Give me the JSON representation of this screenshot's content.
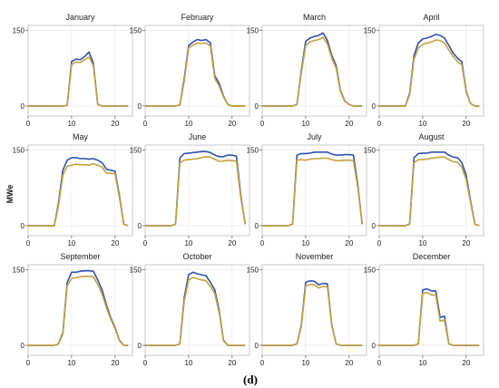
{
  "figure": {
    "ylabel": "MWe",
    "caption": "(d)",
    "colors": {
      "series_a": "#2e50b0",
      "series_b": "#c4a23e",
      "frame": "#bdbdbd",
      "grid": "#e6e6e6"
    }
  },
  "chart_data": [
    {
      "type": "line",
      "title": "January",
      "x": [
        0,
        1,
        2,
        3,
        4,
        5,
        6,
        7,
        8,
        9,
        10,
        11,
        12,
        13,
        14,
        15,
        16,
        17,
        18,
        19,
        20,
        21,
        22,
        23
      ],
      "xticks": [
        0,
        10,
        20
      ],
      "yticks": [
        0,
        150
      ],
      "xlim": [
        0,
        24
      ],
      "ylim": [
        -20,
        160
      ],
      "grid": true,
      "series": [
        {
          "values": [
            0,
            0,
            0,
            0,
            0,
            0,
            0,
            0,
            0,
            1,
            88,
            93,
            92,
            98,
            107,
            85,
            3,
            0,
            0,
            0,
            0,
            0,
            0,
            0
          ]
        },
        {
          "values": [
            0,
            0,
            0,
            0,
            0,
            0,
            0,
            0,
            0,
            1,
            82,
            87,
            86,
            92,
            97,
            80,
            3,
            0,
            0,
            0,
            0,
            0,
            0,
            0
          ]
        }
      ]
    },
    {
      "type": "line",
      "title": "February",
      "x": [
        0,
        1,
        2,
        3,
        4,
        5,
        6,
        7,
        8,
        9,
        10,
        11,
        12,
        13,
        14,
        15,
        16,
        17,
        18,
        19,
        20,
        21,
        22,
        23
      ],
      "xticks": [
        0,
        10,
        20
      ],
      "yticks": [
        0,
        150
      ],
      "xlim": [
        0,
        24
      ],
      "ylim": [
        -20,
        160
      ],
      "grid": true,
      "series": [
        {
          "values": [
            0,
            0,
            0,
            0,
            0,
            0,
            0,
            0,
            2,
            55,
            120,
            127,
            132,
            130,
            132,
            125,
            60,
            45,
            20,
            3,
            0,
            0,
            0,
            0
          ]
        },
        {
          "values": [
            0,
            0,
            0,
            0,
            0,
            0,
            0,
            0,
            2,
            50,
            115,
            121,
            125,
            124,
            125,
            119,
            55,
            40,
            18,
            3,
            0,
            0,
            0,
            0
          ]
        }
      ]
    },
    {
      "type": "line",
      "title": "March",
      "x": [
        0,
        1,
        2,
        3,
        4,
        5,
        6,
        7,
        8,
        9,
        10,
        11,
        12,
        13,
        14,
        15,
        16,
        17,
        18,
        19,
        20,
        21,
        22,
        23
      ],
      "xticks": [
        0,
        10,
        20
      ],
      "yticks": [
        0,
        150
      ],
      "xlim": [
        0,
        24
      ],
      "ylim": [
        -20,
        160
      ],
      "grid": true,
      "series": [
        {
          "values": [
            0,
            0,
            0,
            0,
            0,
            0,
            0,
            0,
            3,
            70,
            128,
            135,
            138,
            140,
            145,
            130,
            100,
            80,
            30,
            10,
            3,
            0,
            0,
            0
          ]
        },
        {
          "values": [
            0,
            0,
            0,
            0,
            0,
            0,
            0,
            0,
            3,
            65,
            120,
            127,
            130,
            132,
            136,
            123,
            95,
            75,
            28,
            9,
            3,
            0,
            0,
            0
          ]
        }
      ]
    },
    {
      "type": "line",
      "title": "April",
      "x": [
        0,
        1,
        2,
        3,
        4,
        5,
        6,
        7,
        8,
        9,
        10,
        11,
        12,
        13,
        14,
        15,
        16,
        17,
        18,
        19,
        20,
        21,
        22,
        23
      ],
      "xticks": [
        0,
        10,
        20
      ],
      "yticks": [
        0,
        150
      ],
      "xlim": [
        0,
        24
      ],
      "ylim": [
        -20,
        160
      ],
      "grid": true,
      "series": [
        {
          "values": [
            0,
            0,
            0,
            0,
            0,
            0,
            0,
            25,
            100,
            125,
            133,
            135,
            138,
            142,
            140,
            135,
            120,
            105,
            95,
            88,
            30,
            5,
            0,
            0
          ]
        },
        {
          "values": [
            0,
            0,
            0,
            0,
            0,
            0,
            0,
            22,
            93,
            115,
            122,
            125,
            127,
            131,
            130,
            125,
            111,
            98,
            88,
            82,
            28,
            5,
            0,
            0
          ]
        }
      ]
    },
    {
      "type": "line",
      "title": "May",
      "x": [
        0,
        1,
        2,
        3,
        4,
        5,
        6,
        7,
        8,
        9,
        10,
        11,
        12,
        13,
        14,
        15,
        16,
        17,
        18,
        19,
        20,
        21,
        22,
        23
      ],
      "xticks": [
        0,
        10,
        20
      ],
      "yticks": [
        0,
        150
      ],
      "xlim": [
        0,
        24
      ],
      "ylim": [
        -20,
        160
      ],
      "grid": true,
      "series": [
        {
          "values": [
            0,
            0,
            0,
            0,
            0,
            0,
            0,
            45,
            110,
            130,
            135,
            135,
            133,
            133,
            132,
            133,
            130,
            125,
            112,
            110,
            108,
            60,
            3,
            0
          ]
        },
        {
          "values": [
            0,
            0,
            0,
            0,
            0,
            0,
            0,
            40,
            100,
            118,
            120,
            122,
            121,
            121,
            120,
            123,
            120,
            116,
            104,
            104,
            103,
            56,
            3,
            0
          ]
        }
      ]
    },
    {
      "type": "line",
      "title": "June",
      "x": [
        0,
        1,
        2,
        3,
        4,
        5,
        6,
        7,
        8,
        9,
        10,
        11,
        12,
        13,
        14,
        15,
        16,
        17,
        18,
        19,
        20,
        21,
        22,
        23
      ],
      "xticks": [
        0,
        10,
        20
      ],
      "yticks": [
        0,
        150
      ],
      "xlim": [
        0,
        24
      ],
      "ylim": [
        -20,
        160
      ],
      "grid": true,
      "series": [
        {
          "values": [
            0,
            0,
            0,
            0,
            0,
            0,
            0,
            3,
            135,
            143,
            144,
            145,
            146,
            147,
            147,
            145,
            140,
            137,
            137,
            140,
            140,
            138,
            60,
            3
          ]
        },
        {
          "values": [
            0,
            0,
            0,
            0,
            0,
            0,
            0,
            3,
            125,
            130,
            131,
            132,
            133,
            135,
            137,
            136,
            132,
            128,
            128,
            130,
            129,
            128,
            55,
            3
          ]
        }
      ]
    },
    {
      "type": "line",
      "title": "July",
      "x": [
        0,
        1,
        2,
        3,
        4,
        5,
        6,
        7,
        8,
        9,
        10,
        11,
        12,
        13,
        14,
        15,
        16,
        17,
        18,
        19,
        20,
        21,
        22,
        23
      ],
      "xticks": [
        0,
        10,
        20
      ],
      "yticks": [
        0,
        150
      ],
      "xlim": [
        0,
        24
      ],
      "ylim": [
        -20,
        160
      ],
      "grid": true,
      "series": [
        {
          "values": [
            0,
            0,
            0,
            0,
            0,
            0,
            0,
            3,
            140,
            143,
            143,
            144,
            146,
            146,
            146,
            146,
            142,
            140,
            140,
            141,
            141,
            140,
            80,
            3
          ]
        },
        {
          "values": [
            0,
            0,
            0,
            0,
            0,
            0,
            0,
            3,
            130,
            131,
            130,
            132,
            133,
            133,
            134,
            134,
            131,
            129,
            129,
            130,
            130,
            129,
            75,
            3
          ]
        }
      ]
    },
    {
      "type": "line",
      "title": "August",
      "x": [
        0,
        1,
        2,
        3,
        4,
        5,
        6,
        7,
        8,
        9,
        10,
        11,
        12,
        13,
        14,
        15,
        16,
        17,
        18,
        19,
        20,
        21,
        22,
        23
      ],
      "xticks": [
        0,
        10,
        20
      ],
      "yticks": [
        0,
        150
      ],
      "xlim": [
        0,
        24
      ],
      "ylim": [
        -20,
        160
      ],
      "grid": true,
      "series": [
        {
          "values": [
            0,
            0,
            0,
            0,
            0,
            0,
            0,
            3,
            135,
            143,
            144,
            144,
            146,
            146,
            146,
            146,
            140,
            136,
            135,
            125,
            100,
            50,
            3,
            0
          ]
        },
        {
          "values": [
            0,
            0,
            0,
            0,
            0,
            0,
            0,
            3,
            125,
            131,
            131,
            132,
            134,
            135,
            136,
            136,
            131,
            127,
            126,
            116,
            92,
            46,
            3,
            0
          ]
        }
      ]
    },
    {
      "type": "line",
      "title": "September",
      "x": [
        0,
        1,
        2,
        3,
        4,
        5,
        6,
        7,
        8,
        9,
        10,
        11,
        12,
        13,
        14,
        15,
        16,
        17,
        18,
        19,
        20,
        21,
        22,
        23
      ],
      "xticks": [
        0,
        10,
        20
      ],
      "yticks": [
        0,
        150
      ],
      "xlim": [
        0,
        24
      ],
      "ylim": [
        -20,
        160
      ],
      "grid": true,
      "series": [
        {
          "values": [
            0,
            0,
            0,
            0,
            0,
            0,
            0,
            3,
            25,
            125,
            145,
            145,
            147,
            148,
            148,
            147,
            130,
            110,
            80,
            55,
            35,
            10,
            0,
            0
          ]
        },
        {
          "values": [
            0,
            0,
            0,
            0,
            0,
            0,
            0,
            3,
            22,
            118,
            133,
            134,
            136,
            137,
            137,
            136,
            121,
            102,
            75,
            52,
            33,
            9,
            0,
            0
          ]
        }
      ]
    },
    {
      "type": "line",
      "title": "October",
      "x": [
        0,
        1,
        2,
        3,
        4,
        5,
        6,
        7,
        8,
        9,
        10,
        11,
        12,
        13,
        14,
        15,
        16,
        17,
        18,
        19,
        20,
        21,
        22,
        23
      ],
      "xticks": [
        0,
        10,
        20
      ],
      "yticks": [
        0,
        150
      ],
      "xlim": [
        0,
        24
      ],
      "ylim": [
        -20,
        160
      ],
      "grid": true,
      "series": [
        {
          "values": [
            0,
            0,
            0,
            0,
            0,
            0,
            0,
            0,
            3,
            95,
            140,
            145,
            142,
            140,
            138,
            125,
            110,
            70,
            10,
            0,
            0,
            0,
            0,
            0
          ]
        },
        {
          "values": [
            0,
            0,
            0,
            0,
            0,
            0,
            0,
            0,
            3,
            88,
            130,
            135,
            132,
            130,
            128,
            117,
            103,
            65,
            9,
            0,
            0,
            0,
            0,
            0
          ]
        }
      ]
    },
    {
      "type": "line",
      "title": "November",
      "x": [
        0,
        1,
        2,
        3,
        4,
        5,
        6,
        7,
        8,
        9,
        10,
        11,
        12,
        13,
        14,
        15,
        16,
        17,
        18,
        19,
        20,
        21,
        22,
        23
      ],
      "xticks": [
        0,
        10,
        20
      ],
      "yticks": [
        0,
        150
      ],
      "xlim": [
        0,
        24
      ],
      "ylim": [
        -20,
        160
      ],
      "grid": true,
      "series": [
        {
          "values": [
            0,
            0,
            0,
            0,
            0,
            0,
            0,
            0,
            3,
            40,
            125,
            128,
            127,
            120,
            123,
            122,
            40,
            3,
            0,
            0,
            0,
            0,
            0,
            0
          ]
        },
        {
          "values": [
            0,
            0,
            0,
            0,
            0,
            0,
            0,
            0,
            3,
            37,
            118,
            121,
            120,
            114,
            117,
            116,
            38,
            3,
            0,
            0,
            0,
            0,
            0,
            0
          ]
        }
      ]
    },
    {
      "type": "line",
      "title": "December",
      "x": [
        0,
        1,
        2,
        3,
        4,
        5,
        6,
        7,
        8,
        9,
        10,
        11,
        12,
        13,
        14,
        15,
        16,
        17,
        18,
        19,
        20,
        21,
        22,
        23
      ],
      "xticks": [
        0,
        10,
        20
      ],
      "yticks": [
        0,
        150
      ],
      "xlim": [
        0,
        24
      ],
      "ylim": [
        -20,
        160
      ],
      "grid": true,
      "series": [
        {
          "values": [
            0,
            0,
            0,
            0,
            0,
            0,
            0,
            0,
            0,
            3,
            110,
            112,
            108,
            108,
            55,
            58,
            3,
            0,
            0,
            0,
            0,
            0,
            0,
            0
          ]
        },
        {
          "values": [
            0,
            0,
            0,
            0,
            0,
            0,
            0,
            0,
            0,
            3,
            103,
            105,
            100,
            100,
            48,
            50,
            3,
            0,
            0,
            0,
            0,
            0,
            0,
            0
          ]
        }
      ]
    }
  ]
}
